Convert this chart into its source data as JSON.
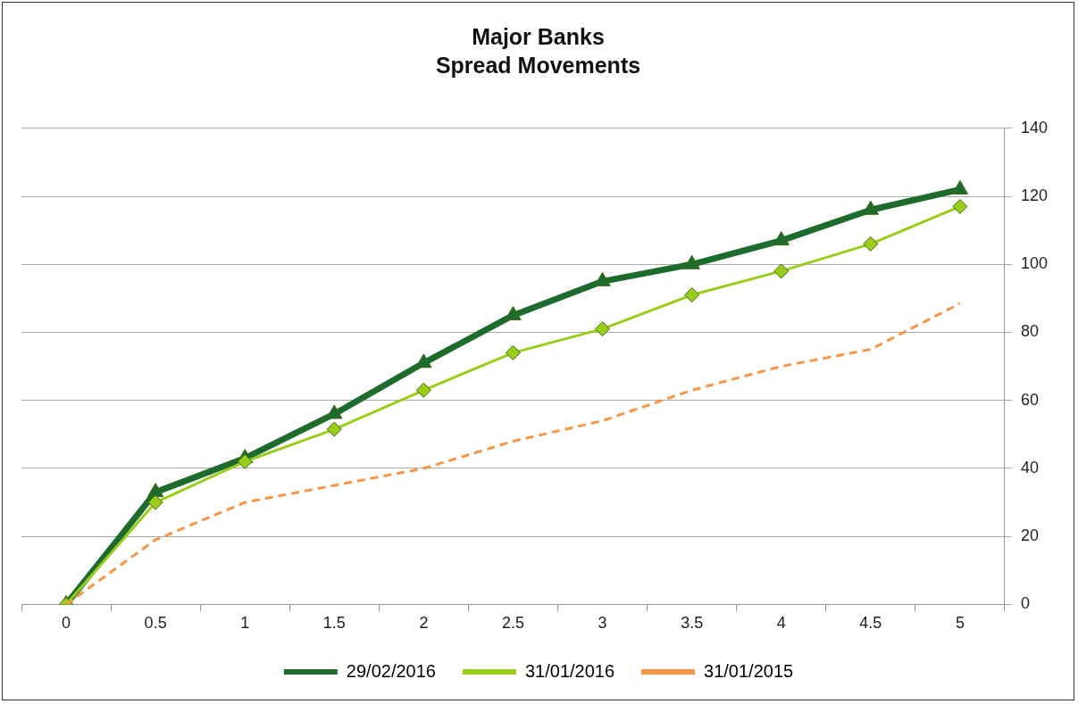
{
  "chart_data": {
    "type": "line",
    "title": "Major Banks\nSpread Movements",
    "categories": [
      "0",
      "0.5",
      "1",
      "1.5",
      "2",
      "2.5",
      "3",
      "3.5",
      "4",
      "4.5",
      "5"
    ],
    "series": [
      {
        "name": "29/02/2016",
        "color": "#1e6b2e",
        "marker": "triangle",
        "line_style": "solid",
        "values": [
          0,
          33,
          43,
          56,
          71,
          85,
          95,
          100,
          107,
          116,
          122
        ]
      },
      {
        "name": "31/01/2016",
        "color": "#9acd1a",
        "marker": "diamond",
        "line_style": "solid",
        "values": [
          0,
          30,
          42,
          51.5,
          63,
          74,
          81,
          91,
          98,
          106,
          117
        ]
      },
      {
        "name": "31/01/2015",
        "color": "#f79646",
        "marker": "none",
        "line_style": "dashed",
        "values": [
          0,
          19,
          30,
          35,
          40,
          48,
          54,
          63,
          70,
          75,
          88.5
        ]
      }
    ],
    "ylim": [
      0,
      140
    ],
    "yticks": [
      0,
      20,
      40,
      60,
      80,
      100,
      120,
      140
    ],
    "grid": "y",
    "legend": "bottom"
  }
}
